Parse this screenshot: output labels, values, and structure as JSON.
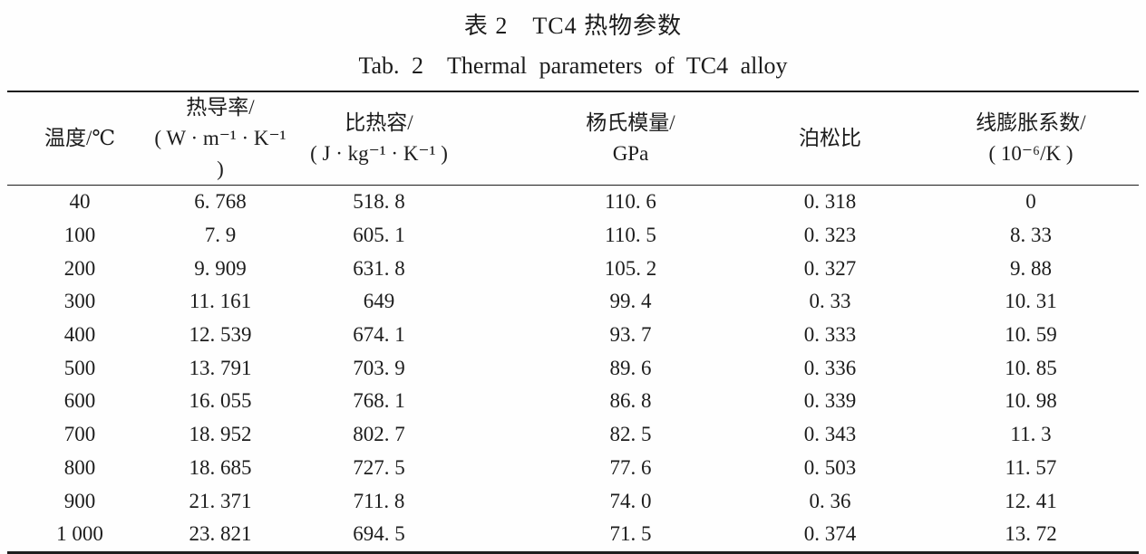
{
  "page": {
    "background": "#fefefe",
    "text_color": "#1c1c1c",
    "rule_color": "#1d1d1d"
  },
  "titles": {
    "zh": "表 2　TC4 热物参数",
    "en": "Tab. 2　Thermal parameters of TC4 alloy"
  },
  "table": {
    "columns": [
      {
        "line1": "温度/℃"
      },
      {
        "line1": "热导率/",
        "line2": "( W · m⁻¹ · K⁻¹ )"
      },
      {
        "line1": "比热容/",
        "line2": "( J · kg⁻¹ · K⁻¹ )"
      },
      {
        "line1": "杨氏模量/",
        "line2": "GPa"
      },
      {
        "line1": "泊松比"
      },
      {
        "line1": "线膨胀系数/",
        "line2": "( 10⁻⁶/K )"
      }
    ],
    "rows": [
      [
        "40",
        "6. 768",
        "518. 8",
        "110. 6",
        "0. 318",
        "0"
      ],
      [
        "100",
        "7. 9",
        "605. 1",
        "110. 5",
        "0. 323",
        "8. 33"
      ],
      [
        "200",
        "9. 909",
        "631. 8",
        "105. 2",
        "0. 327",
        "9. 88"
      ],
      [
        "300",
        "11. 161",
        "649",
        "99. 4",
        "0. 33",
        "10. 31"
      ],
      [
        "400",
        "12. 539",
        "674. 1",
        "93. 7",
        "0. 333",
        "10. 59"
      ],
      [
        "500",
        "13. 791",
        "703. 9",
        "89. 6",
        "0. 336",
        "10. 85"
      ],
      [
        "600",
        "16. 055",
        "768. 1",
        "86. 8",
        "0. 339",
        "10. 98"
      ],
      [
        "700",
        "18. 952",
        "802. 7",
        "82. 5",
        "0. 343",
        "11. 3"
      ],
      [
        "800",
        "18. 685",
        "727. 5",
        "77. 6",
        "0. 503",
        "11. 57"
      ],
      [
        "900",
        "21. 371",
        "711. 8",
        "74. 0",
        "0. 36",
        "12. 41"
      ],
      [
        "1 000",
        "23. 821",
        "694. 5",
        "71. 5",
        "0. 374",
        "13. 72"
      ]
    ]
  },
  "chart_data": {
    "type": "table",
    "title": "表 2 TC4 热物参数 / Tab. 2 Thermal parameters of TC4 alloy",
    "columns": [
      "温度/℃",
      "热导率/(W·m⁻¹·K⁻¹)",
      "比热容/(J·kg⁻¹·K⁻¹)",
      "杨氏模量/GPa",
      "泊松比",
      "线膨胀系数/(10⁻⁶/K)"
    ],
    "rows": [
      [
        40,
        6.768,
        518.8,
        110.6,
        0.318,
        0
      ],
      [
        100,
        7.9,
        605.1,
        110.5,
        0.323,
        8.33
      ],
      [
        200,
        9.909,
        631.8,
        105.2,
        0.327,
        9.88
      ],
      [
        300,
        11.161,
        649,
        99.4,
        0.33,
        10.31
      ],
      [
        400,
        12.539,
        674.1,
        93.7,
        0.333,
        10.59
      ],
      [
        500,
        13.791,
        703.9,
        89.6,
        0.336,
        10.85
      ],
      [
        600,
        16.055,
        768.1,
        86.8,
        0.339,
        10.98
      ],
      [
        700,
        18.952,
        802.7,
        82.5,
        0.343,
        11.3
      ],
      [
        800,
        18.685,
        727.5,
        77.6,
        0.503,
        11.57
      ],
      [
        900,
        21.371,
        711.8,
        74.0,
        0.36,
        12.41
      ],
      [
        1000,
        23.821,
        694.5,
        71.5,
        0.374,
        13.72
      ]
    ]
  }
}
